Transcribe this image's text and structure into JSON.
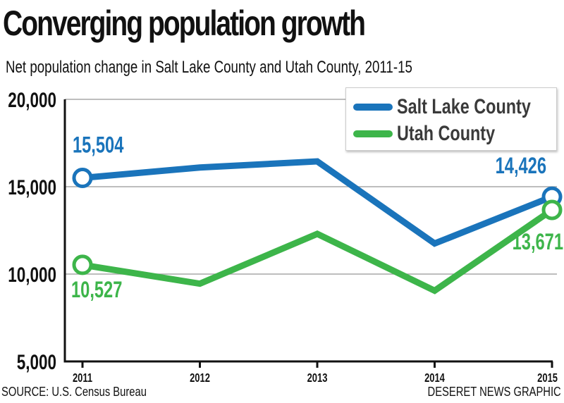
{
  "title": "Converging population growth",
  "subtitle": "Net population change in Salt Lake County and Utah County, 2011-15",
  "source": "SOURCE: U.S. Census Bureau",
  "credit": "DESERET NEWS GRAPHIC",
  "chart_data": {
    "type": "line",
    "title": "Converging population growth",
    "subtitle": "Net population change in Salt Lake County and Utah County, 2011-15",
    "xlabel": "",
    "ylabel": "",
    "categories": [
      "2011",
      "2012",
      "2013",
      "2014",
      "2015"
    ],
    "ylim": [
      5000,
      20000
    ],
    "yticks": [
      20000,
      15000,
      10000,
      5000
    ],
    "ytick_labels": [
      "20,000",
      "15,000",
      "10,000",
      "5,000"
    ],
    "grid": true,
    "legend_position": "top-right",
    "series": [
      {
        "name": "Salt Lake County",
        "color": "#1a74bb",
        "values": [
          15504,
          16100,
          16450,
          11750,
          14426
        ],
        "labels": {
          "2011": "15,504",
          "2015": "14,426"
        }
      },
      {
        "name": "Utah County",
        "color": "#3db54a",
        "values": [
          10527,
          9450,
          12300,
          9050,
          13671
        ],
        "labels": {
          "2011": "10,527",
          "2015": "13,671"
        }
      }
    ]
  }
}
